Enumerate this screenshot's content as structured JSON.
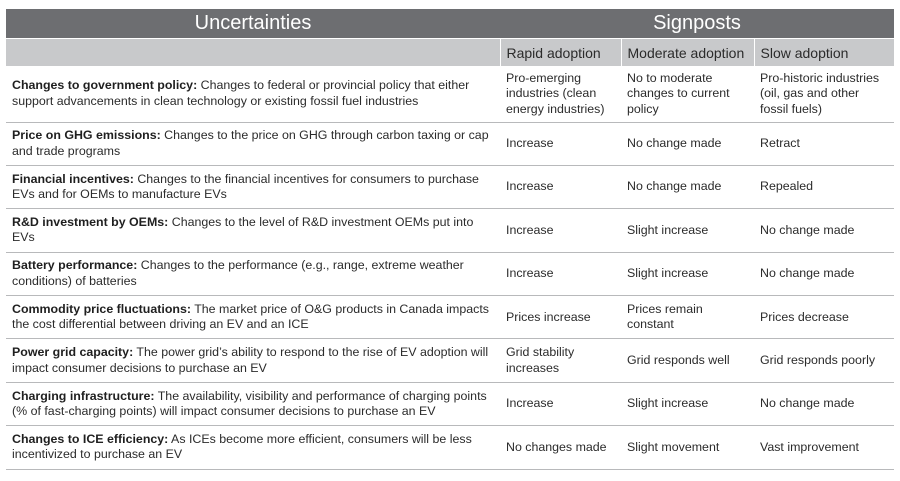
{
  "header": {
    "uncertainties": "Uncertainties",
    "signposts": "Signposts",
    "columns": [
      "Rapid adoption",
      "Moderate adoption",
      "Slow adoption"
    ]
  },
  "rows": [
    {
      "title": "Changes to government policy:",
      "desc": " Changes to federal or provincial policy that either support advancements in clean technology or existing fossil fuel industries",
      "rapid": "Pro-emerging industries (clean energy industries)",
      "moderate": "No to moderate changes to current policy",
      "slow": "Pro-historic industries (oil, gas and other fossil fuels)"
    },
    {
      "title": "Price on GHG emissions:",
      "desc": " Changes to the price on GHG through carbon taxing or cap and trade programs",
      "rapid": "Increase",
      "moderate": "No change made",
      "slow": "Retract"
    },
    {
      "title": "Financial incentives:",
      "desc": " Changes to the financial incentives for consumers to purchase EVs and for OEMs to manufacture EVs",
      "rapid": "Increase",
      "moderate": "No change made",
      "slow": "Repealed"
    },
    {
      "title": "R&D investment by OEMs:",
      "desc": " Changes to the level of R&D investment OEMs put into EVs",
      "rapid": "Increase",
      "moderate": "Slight increase",
      "slow": "No change made"
    },
    {
      "title": "Battery performance:",
      "desc": " Changes to the performance (e.g., range, extreme weather conditions) of batteries",
      "rapid": "Increase",
      "moderate": "Slight increase",
      "slow": "No change made"
    },
    {
      "title": "Commodity price fluctuations:",
      "desc": " The market price of O&G products in Canada impacts the cost differential between driving an EV and an ICE",
      "rapid": "Prices increase",
      "moderate": "Prices remain constant",
      "slow": "Prices decrease"
    },
    {
      "title": "Power grid capacity:",
      "desc": " The power grid’s ability to respond to the rise of EV adoption will impact consumer decisions to purchase an EV",
      "rapid": "Grid stability increases",
      "moderate": "Grid responds well",
      "slow": "Grid responds poorly"
    },
    {
      "title": "Charging infrastructure:",
      "desc": " The availability, visibility and performance of charging points  (% of fast-charging points) will impact consumer decisions to purchase an EV",
      "rapid": "Increase",
      "moderate": "Slight increase",
      "slow": "No change made"
    },
    {
      "title": "Changes to ICE efficiency:",
      "desc": " As ICEs become more efficient, consumers will be less incentivized to purchase an EV",
      "rapid": "No changes made",
      "moderate": "Slight movement",
      "slow": "Vast improvement"
    }
  ]
}
